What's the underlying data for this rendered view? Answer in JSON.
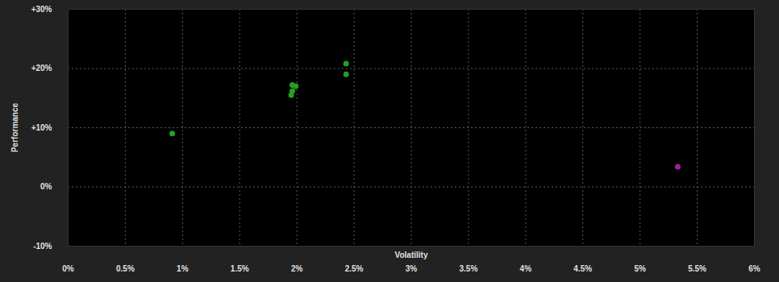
{
  "chart_data": {
    "type": "scatter",
    "x_label": "Volatility",
    "y_label": "Performance",
    "x": [
      0.91,
      1.96,
      1.99,
      1.96,
      1.95,
      2.43,
      2.43,
      5.33
    ],
    "values": [
      9.0,
      17.2,
      17.0,
      16.2,
      15.5,
      20.8,
      19.0,
      3.4
    ],
    "colors": [
      "#22a022",
      "#22a022",
      "#22a022",
      "#22a022",
      "#22a022",
      "#22a022",
      "#22a022",
      "#a0209a"
    ],
    "xlim": [
      0,
      6
    ],
    "ylim": [
      -10,
      30
    ],
    "xticks": [
      {
        "value": 0,
        "label": "0%"
      },
      {
        "value": 0.5,
        "label": "0.5%"
      },
      {
        "value": 1,
        "label": "1%"
      },
      {
        "value": 1.5,
        "label": "1.5%"
      },
      {
        "value": 2,
        "label": "2%"
      },
      {
        "value": 2.5,
        "label": "2.5%"
      },
      {
        "value": 3,
        "label": "3%"
      },
      {
        "value": 3.5,
        "label": "3.5%"
      },
      {
        "value": 4,
        "label": "4%"
      },
      {
        "value": 4.5,
        "label": "4.5%"
      },
      {
        "value": 5,
        "label": "5%"
      },
      {
        "value": 5.5,
        "label": "5.5%"
      },
      {
        "value": 6,
        "label": "6%"
      }
    ],
    "yticks": [
      {
        "value": -10,
        "label": "-10%"
      },
      {
        "value": 0,
        "label": "0%"
      },
      {
        "value": 10,
        "label": "+10%"
      },
      {
        "value": 20,
        "label": "+20%"
      },
      {
        "value": 30,
        "label": "+30%"
      }
    ],
    "grid": true,
    "marker": "circle"
  }
}
